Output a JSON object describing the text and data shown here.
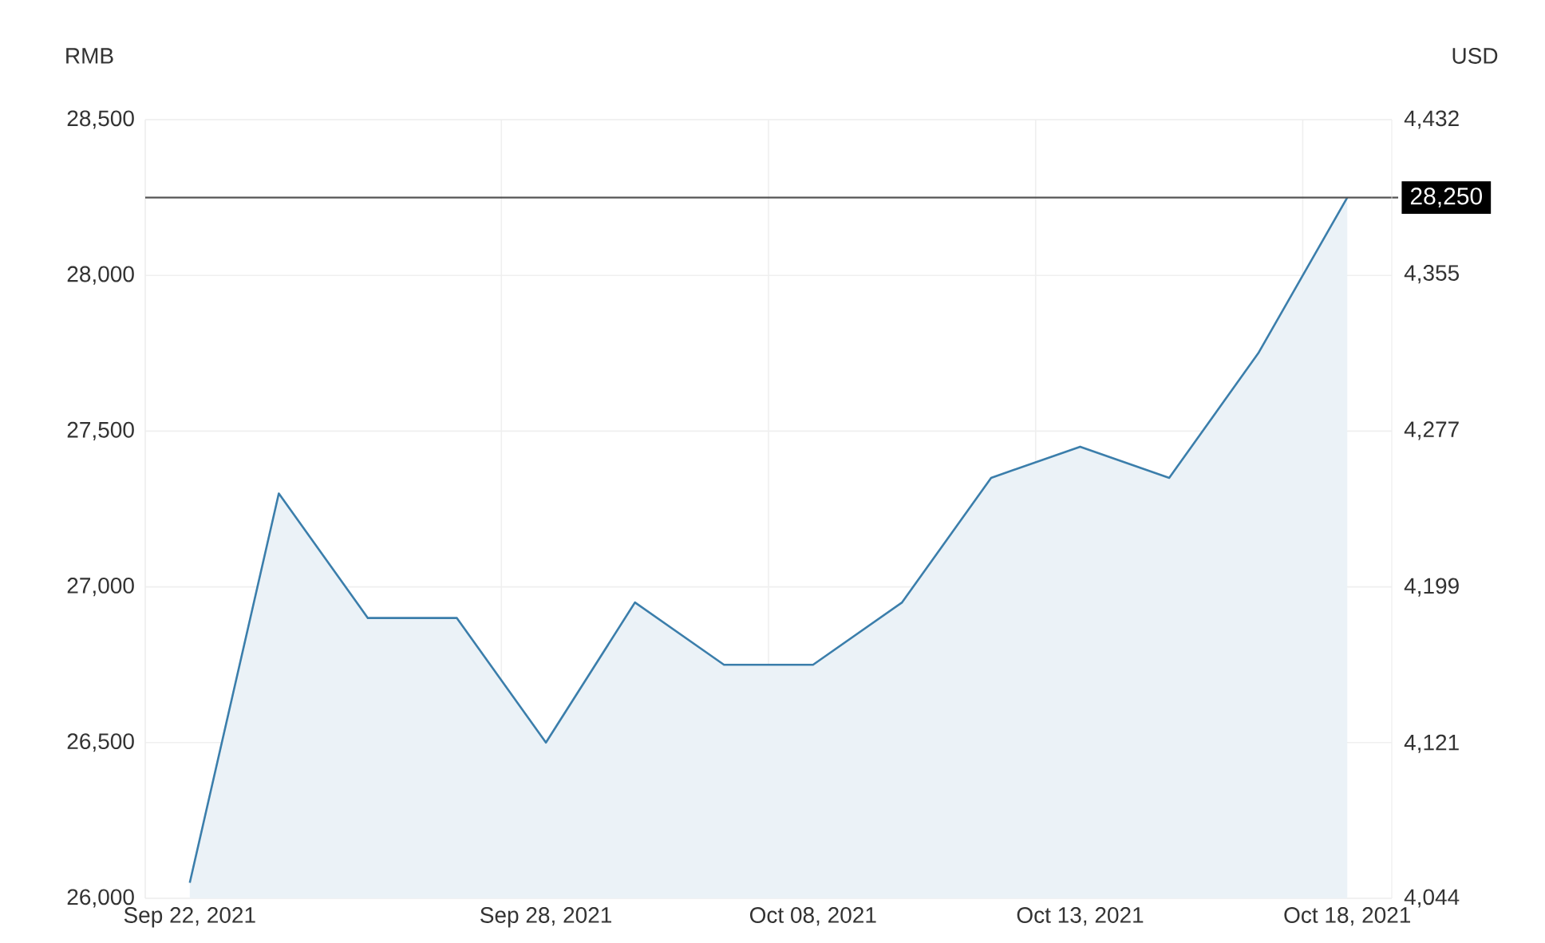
{
  "chart_data": {
    "type": "area",
    "categories": [
      "Sep 22, 2021",
      null,
      null,
      null,
      "Sep 28, 2021",
      null,
      null,
      "Oct 08, 2021",
      null,
      null,
      "Oct 13, 2021",
      null,
      null,
      "Oct 18, 2021"
    ],
    "values": [
      26050,
      27300,
      26900,
      26900,
      26500,
      26950,
      26750,
      26750,
      26950,
      27350,
      27450,
      27350,
      27750,
      28250
    ],
    "color": "#3b7eab",
    "ylabel": "RMB",
    "y2label": "USD",
    "ylim": [
      26000,
      28500
    ],
    "yticks": [
      {
        "value": 26000,
        "label": "26,000"
      },
      {
        "value": 26500,
        "label": "26,500"
      },
      {
        "value": 27000,
        "label": "27,000"
      },
      {
        "value": 27500,
        "label": "27,500"
      },
      {
        "value": 28000,
        "label": "28,000"
      },
      {
        "value": 28500,
        "label": "28,500"
      }
    ],
    "y2lim": [
      4044,
      4432
    ],
    "y2ticks": [
      {
        "value": 4044,
        "label": "4,044"
      },
      {
        "value": 4121,
        "label": "4,121"
      },
      {
        "value": 4199,
        "label": "4,199"
      },
      {
        "value": 4277,
        "label": "4,277"
      },
      {
        "value": 4355,
        "label": "4,355"
      },
      {
        "value": 4432,
        "label": "4,432"
      }
    ],
    "ref_lines": [
      {
        "axis": "y",
        "value": 28250,
        "label": "28,250",
        "color": "#555555"
      }
    ],
    "grid": true
  }
}
